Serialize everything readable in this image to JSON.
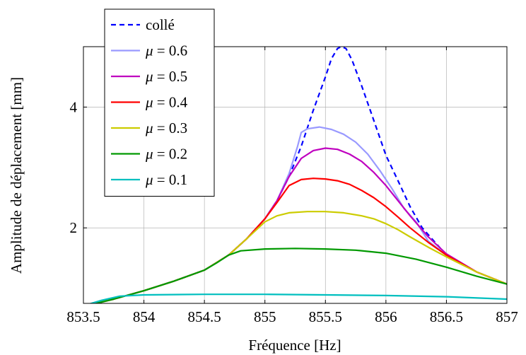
{
  "chart_data": {
    "type": "line",
    "xlabel": "Fréquence [Hz]",
    "ylabel": "Amplitude de déplacement [mm]",
    "xlim": [
      853.5,
      857
    ],
    "ylim": [
      0.75,
      5.0
    ],
    "xticks": [
      853.5,
      854,
      854.5,
      855,
      855.5,
      856,
      856.5,
      857
    ],
    "xtick_labels": [
      "853.5",
      "854",
      "854.5",
      "855",
      "855.5",
      "856",
      "856.5",
      "857"
    ],
    "yticks": [
      2,
      4
    ],
    "ytick_labels": [
      "2",
      "4"
    ],
    "grid": true,
    "legend_placement": "top-left",
    "series": [
      {
        "name": "collé",
        "legend_text": "collé",
        "color": "#0000ff",
        "dash": "dashed",
        "x": [
          853.5,
          853.75,
          854.0,
          854.25,
          854.5,
          854.7,
          854.85,
          855.0,
          855.1,
          855.2,
          855.3,
          855.4,
          855.5,
          855.55,
          855.6,
          855.63,
          855.67,
          855.72,
          855.8,
          855.9,
          856.0,
          856.1,
          856.2,
          856.3,
          856.5,
          856.75,
          857.0
        ],
        "y": [
          0.7,
          0.82,
          0.96,
          1.12,
          1.3,
          1.55,
          1.82,
          2.15,
          2.45,
          2.85,
          3.35,
          3.95,
          4.5,
          4.8,
          4.97,
          5.0,
          4.97,
          4.78,
          4.35,
          3.78,
          3.2,
          2.78,
          2.35,
          2.0,
          1.55,
          1.27,
          1.07
        ]
      },
      {
        "name": "μ = 0.6",
        "legend_prefix": "μ",
        "legend_suffix": " = 0.6",
        "color": "#9999ff",
        "dash": "solid",
        "x": [
          853.5,
          853.75,
          854.0,
          854.25,
          854.5,
          854.7,
          854.85,
          855.0,
          855.1,
          855.2,
          855.27,
          855.3,
          855.35,
          855.45,
          855.55,
          855.65,
          855.75,
          855.85,
          855.95,
          856.05,
          856.15,
          856.25,
          856.35,
          856.5,
          856.75,
          857.0
        ],
        "y": [
          0.7,
          0.82,
          0.96,
          1.12,
          1.3,
          1.55,
          1.82,
          2.15,
          2.45,
          2.9,
          3.35,
          3.58,
          3.64,
          3.67,
          3.63,
          3.55,
          3.42,
          3.22,
          2.95,
          2.65,
          2.32,
          2.1,
          1.78,
          1.55,
          1.27,
          1.07
        ]
      },
      {
        "name": "μ = 0.5",
        "legend_prefix": "μ",
        "legend_suffix": " = 0.5",
        "color": "#bf00bf",
        "dash": "solid",
        "x": [
          853.5,
          853.75,
          854.0,
          854.25,
          854.5,
          854.7,
          854.85,
          855.0,
          855.1,
          855.2,
          855.3,
          855.4,
          855.5,
          855.6,
          855.7,
          855.8,
          855.9,
          856.0,
          856.1,
          856.2,
          856.35,
          856.5,
          856.75,
          857.0
        ],
        "y": [
          0.7,
          0.82,
          0.96,
          1.12,
          1.3,
          1.55,
          1.82,
          2.15,
          2.45,
          2.85,
          3.15,
          3.28,
          3.32,
          3.3,
          3.22,
          3.1,
          2.92,
          2.7,
          2.45,
          2.2,
          1.85,
          1.57,
          1.27,
          1.07
        ]
      },
      {
        "name": "μ = 0.4",
        "legend_prefix": "μ",
        "legend_suffix": " = 0.4",
        "color": "#ff0000",
        "dash": "solid",
        "x": [
          853.5,
          853.75,
          854.0,
          854.25,
          854.5,
          854.7,
          854.85,
          855.0,
          855.1,
          855.2,
          855.3,
          855.4,
          855.5,
          855.6,
          855.7,
          855.8,
          855.9,
          856.0,
          856.1,
          856.2,
          856.35,
          856.5,
          856.75,
          857.0
        ],
        "y": [
          0.7,
          0.82,
          0.96,
          1.12,
          1.3,
          1.55,
          1.82,
          2.15,
          2.42,
          2.7,
          2.8,
          2.82,
          2.81,
          2.78,
          2.72,
          2.62,
          2.5,
          2.35,
          2.18,
          2.0,
          1.76,
          1.55,
          1.27,
          1.07
        ]
      },
      {
        "name": "μ = 0.3",
        "legend_prefix": "μ",
        "legend_suffix": " = 0.3",
        "color": "#cccc00",
        "dash": "solid",
        "x": [
          853.5,
          853.75,
          854.0,
          854.25,
          854.5,
          854.7,
          854.85,
          855.0,
          855.1,
          855.2,
          855.35,
          855.5,
          855.65,
          855.8,
          855.9,
          856.0,
          856.1,
          856.2,
          856.35,
          856.5,
          856.75,
          857.0
        ],
        "y": [
          0.7,
          0.82,
          0.96,
          1.12,
          1.3,
          1.55,
          1.82,
          2.1,
          2.2,
          2.25,
          2.27,
          2.27,
          2.25,
          2.2,
          2.15,
          2.07,
          1.97,
          1.85,
          1.68,
          1.52,
          1.27,
          1.07
        ]
      },
      {
        "name": "μ = 0.2",
        "legend_prefix": "μ",
        "legend_suffix": " = 0.2",
        "color": "#009900",
        "dash": "solid",
        "x": [
          853.5,
          853.75,
          854.0,
          854.25,
          854.5,
          854.6,
          854.7,
          854.8,
          855.0,
          855.25,
          855.5,
          855.75,
          856.0,
          856.25,
          856.5,
          856.75,
          857.0
        ],
        "y": [
          0.7,
          0.82,
          0.96,
          1.12,
          1.3,
          1.42,
          1.55,
          1.62,
          1.65,
          1.66,
          1.65,
          1.63,
          1.58,
          1.48,
          1.35,
          1.2,
          1.07
        ]
      },
      {
        "name": "μ = 0.1",
        "legend_prefix": "μ",
        "legend_suffix": " = 0.1",
        "color": "#00bfbf",
        "dash": "solid",
        "x": [
          853.5,
          853.65,
          853.8,
          854.0,
          854.5,
          855.0,
          855.5,
          856.0,
          856.5,
          857.0
        ],
        "y": [
          0.71,
          0.8,
          0.87,
          0.89,
          0.9,
          0.9,
          0.89,
          0.88,
          0.86,
          0.82
        ]
      }
    ]
  }
}
